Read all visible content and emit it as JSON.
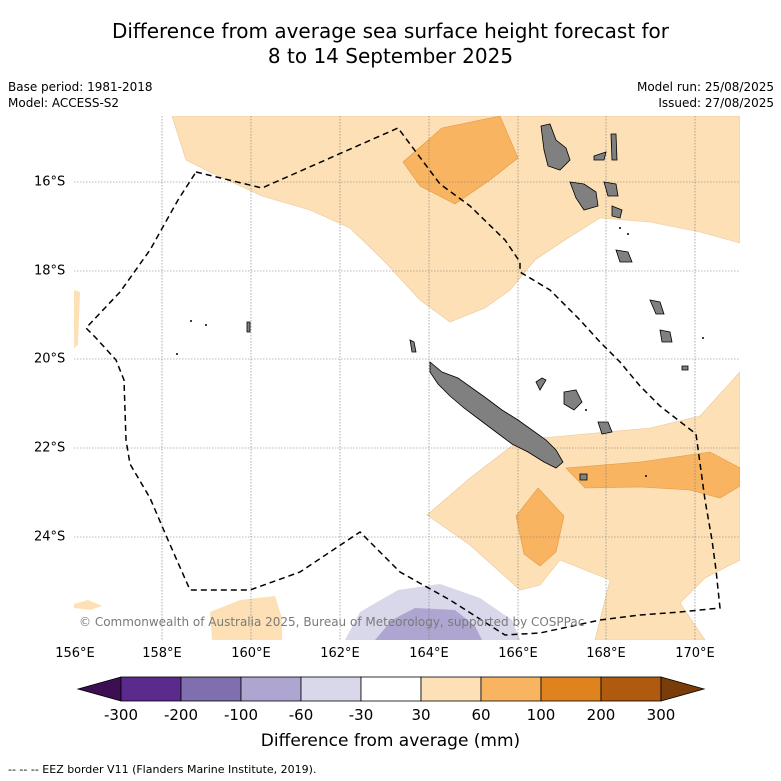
{
  "title_line1": "Difference from average sea surface height forecast for",
  "title_line2": "8 to 14 September 2025",
  "base_period": "Base period: 1981-2018",
  "model": "Model: ACCESS-S2",
  "model_run": "Model run: 25/08/2025",
  "issued": "Issued: 27/08/2025",
  "attribution": "© Commonwealth of Australia 2025, Bureau of Meteorology, supported by COSPPac",
  "longitude_labels": [
    "156°E",
    "158°E",
    "160°E",
    "162°E",
    "164°E",
    "166°E",
    "168°E",
    "170°E"
  ],
  "latitude_labels": [
    "16°S",
    "18°S",
    "20°S",
    "22°S",
    "24°S"
  ],
  "colorbar": {
    "title": "Difference from average (mm)",
    "tick_labels": [
      "-300",
      "-200",
      "-100",
      "-60",
      "-30",
      "30",
      "60",
      "100",
      "200",
      "300"
    ],
    "colors": [
      "#3b0f52",
      "#5a2a8c",
      "#7f6fae",
      "#aea6d0",
      "#d9d8ea",
      "#ffffff",
      "#fde0b5",
      "#f8b461",
      "#e0821e",
      "#b05a0f",
      "#7a3c08"
    ]
  },
  "footnote": "--  --  -- EEZ border V11 (Flanders Marine Institute, 2019)."
}
